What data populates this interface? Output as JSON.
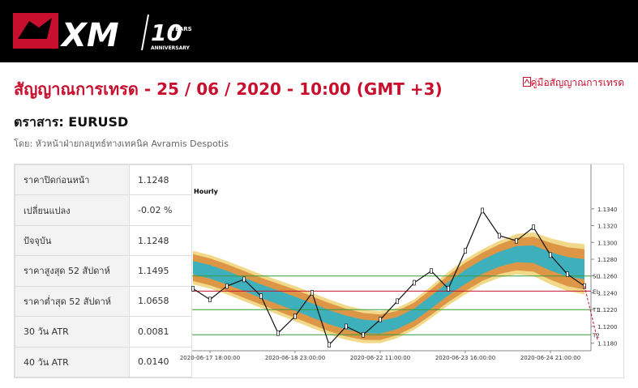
{
  "header": {
    "logo": "XM",
    "anniversary_number": "10",
    "anniversary_years": "YEARS",
    "anniversary_text": "ANNIVERSARY"
  },
  "title": "สัญญาณการเทรด - 25 / 06 / 2020 - 10:00 (GMT +3)",
  "guide_link": "คู่มือสัญญาณการเทรด",
  "instrument": "ตราสาร: EURUSD",
  "author": "โดย: หัวหน้าฝ่ายกลยุทธ์ทางเทคนิค Avramis Despotis",
  "table": {
    "rows": [
      [
        "ราคาปิดก่อนหน้า",
        "1.1248"
      ],
      [
        "เปลี่ยนแปลง",
        "-0.02 %"
      ],
      [
        "ปัจจุบัน",
        "1.1248"
      ],
      [
        "ราคาสูงสุด 52 สัปดาห์",
        "1.1495"
      ],
      [
        "ราคาต่ำสุด 52 สัปดาห์",
        "1.0658"
      ],
      [
        "30 วัน ATR",
        "0.0081"
      ],
      [
        "40 วัน ATR",
        "0.0140"
      ]
    ]
  },
  "chart_data": {
    "type": "line",
    "label": "Hourly",
    "categories": [
      null,
      "2020-06-17 18:00:00",
      null,
      null,
      null,
      null,
      "2020-06-18 23:00:00",
      null,
      null,
      null,
      null,
      "2020-06-22 11:00:00",
      null,
      null,
      null,
      null,
      "2020-06-23 16:00:00",
      null,
      null,
      null,
      null,
      "2020-06-24 21:00:00",
      null,
      null
    ],
    "series": [
      {
        "color": "#111111",
        "values": [
          1.1245,
          1.1232,
          1.1248,
          1.1256,
          1.1236,
          1.1192,
          1.1212,
          1.124,
          1.1178,
          1.12,
          1.119,
          1.1208,
          1.123,
          1.1252,
          1.1266,
          1.1245,
          1.129,
          1.1338,
          1.1308,
          1.1302,
          1.1318,
          1.1285,
          1.1262,
          1.1248
        ]
      }
    ],
    "cloud": {
      "upper": [
        1.129,
        1.1285,
        1.1278,
        1.127,
        1.1262,
        1.1255,
        1.1248,
        1.124,
        1.1232,
        1.1225,
        1.122,
        1.1218,
        1.1222,
        1.1232,
        1.1248,
        1.1265,
        1.128,
        1.1292,
        1.1302,
        1.131,
        1.1312,
        1.1305,
        1.13,
        1.1298
      ],
      "lower": [
        1.125,
        1.1245,
        1.1238,
        1.123,
        1.1222,
        1.1214,
        1.1206,
        1.1198,
        1.119,
        1.1184,
        1.118,
        1.118,
        1.1186,
        1.1196,
        1.121,
        1.1225,
        1.1238,
        1.125,
        1.1258,
        1.1262,
        1.126,
        1.125,
        1.1242,
        1.1238
      ]
    },
    "levels": [
      {
        "label": "SL",
        "value": 1.126,
        "color": "#3a9a3a"
      },
      {
        "label": "EL",
        "value": 1.1242,
        "color": "#c8102e"
      },
      {
        "label": "T1",
        "value": 1.122,
        "color": "#3a9a3a"
      },
      {
        "label": "T2",
        "value": 1.119,
        "color": "#3a9a3a"
      }
    ],
    "ylim": [
      1.1171,
      1.139
    ],
    "yticks": [
      {
        "value": 1.118,
        "label": "1.1180"
      },
      {
        "value": 1.12,
        "label": "1.1200"
      },
      {
        "value": 1.122,
        "label": "1.1220"
      },
      {
        "value": 1.124,
        "label": "1.1240"
      },
      {
        "value": 1.126,
        "label": "1.1260"
      },
      {
        "value": 1.128,
        "label": "1.1280"
      },
      {
        "value": 1.13,
        "label": "1.1300"
      },
      {
        "value": 1.132,
        "label": "1.1320"
      },
      {
        "value": 1.134,
        "label": "1.1340"
      }
    ]
  }
}
